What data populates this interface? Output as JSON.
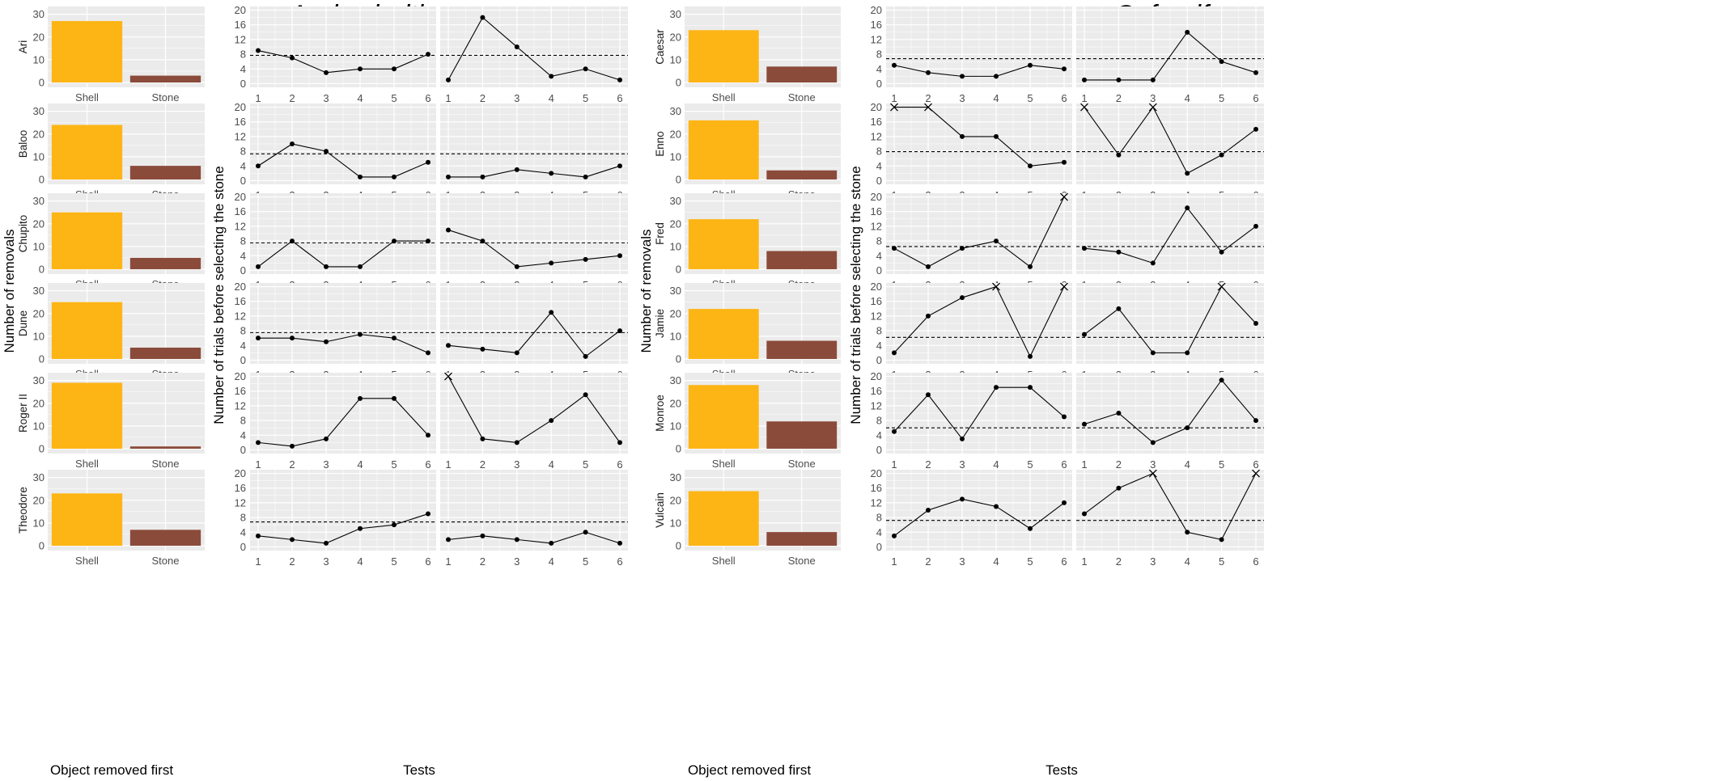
{
  "colors": {
    "shell": "#FDB515",
    "stone": "#8B4B3A",
    "panel_bg": "#EBEBEB",
    "grid_major": "#FFFFFF",
    "line": "#000000"
  },
  "chart_data": [
    {
      "group": "left",
      "species_title": "A. dewindti",
      "bar_panel": {
        "type": "bar",
        "categories": [
          "Shell",
          "Stone"
        ],
        "xlabel": "Object removed first",
        "ylabel": "Number of removals",
        "yticks": [
          "0",
          "10",
          "20",
          "30"
        ],
        "ylim": [
          0,
          32
        ],
        "facets": [
          {
            "name": "Ari",
            "values": [
              27,
              3
            ]
          },
          {
            "name": "Baloo",
            "values": [
              24,
              6
            ]
          },
          {
            "name": "Chupito",
            "values": [
              25,
              5
            ]
          },
          {
            "name": "Dune",
            "values": [
              25,
              5
            ]
          },
          {
            "name": "Roger II",
            "values": [
              29,
              1
            ]
          },
          {
            "name": "Theodore",
            "values": [
              23,
              7
            ]
          }
        ]
      },
      "line_panel": {
        "type": "line",
        "x": [
          1,
          2,
          3,
          4,
          5,
          6
        ],
        "xticks": [
          "1",
          "2",
          "3",
          "4",
          "5",
          "6"
        ],
        "xlabel": "Tests",
        "ylabel": "Number of trials before selecting the stone",
        "yticks": [
          "0",
          "4",
          "8",
          "12",
          "16",
          "20"
        ],
        "ylim": [
          -1,
          21
        ],
        "marker_cross_value": 20,
        "facets": [
          {
            "name": "Ari",
            "reference": 7.7,
            "series": [
              [
                9,
                7,
                3,
                4,
                4,
                8
              ],
              [
                1,
                18,
                10,
                2,
                4,
                1
              ]
            ]
          },
          {
            "name": "Baloo",
            "reference": 7.3,
            "series": [
              [
                4,
                10,
                8,
                1,
                1,
                5
              ],
              [
                1,
                1,
                3,
                2,
                1,
                4
              ]
            ]
          },
          {
            "name": "Chupito",
            "reference": 7.5,
            "series": [
              [
                1,
                8,
                1,
                1,
                8,
                8
              ],
              [
                11,
                8,
                1,
                2,
                3,
                4
              ]
            ]
          },
          {
            "name": "Dune",
            "reference": 7.5,
            "series": [
              [
                6,
                6,
                5,
                7,
                6,
                2
              ],
              [
                4,
                3,
                2,
                13,
                1,
                8
              ]
            ]
          },
          {
            "name": "Roger II",
            "reference": null,
            "series": [
              [
                2,
                1,
                3,
                14,
                14,
                4
              ],
              [
                20,
                3,
                2,
                8,
                15,
                2
              ]
            ]
          },
          {
            "name": "Theodore",
            "reference": 6.8,
            "series": [
              [
                3,
                2,
                1,
                5,
                6,
                9
              ],
              [
                2,
                3,
                2,
                1,
                4,
                1
              ]
            ]
          }
        ]
      }
    },
    {
      "group": "right",
      "species_title": "C. furcifer",
      "bar_panel": {
        "type": "bar",
        "categories": [
          "Shell",
          "Stone"
        ],
        "xlabel": "Object removed first",
        "ylabel": "Number of removals",
        "yticks": [
          "0",
          "10",
          "20",
          "30"
        ],
        "ylim": [
          0,
          32
        ],
        "facets": [
          {
            "name": "Caesar",
            "values": [
              23,
              7
            ]
          },
          {
            "name": "Enno",
            "values": [
              26,
              4
            ]
          },
          {
            "name": "Fred",
            "values": [
              22,
              8
            ]
          },
          {
            "name": "Jamie",
            "values": [
              22,
              8
            ]
          },
          {
            "name": "Monroe",
            "values": [
              28,
              12
            ]
          },
          {
            "name": "Vulcain",
            "values": [
              24,
              6
            ]
          }
        ]
      },
      "line_panel": {
        "type": "line",
        "x": [
          1,
          2,
          3,
          4,
          5,
          6
        ],
        "xticks": [
          "1",
          "2",
          "3",
          "4",
          "5",
          "6"
        ],
        "xlabel": "Tests",
        "ylabel": "Number of trials before selecting the stone",
        "yticks": [
          "0",
          "4",
          "8",
          "12",
          "16",
          "20"
        ],
        "ylim": [
          -1,
          21
        ],
        "marker_cross_value": 20,
        "facets": [
          {
            "name": "Caesar",
            "reference": 6.8,
            "series": [
              [
                5,
                3,
                2,
                2,
                5,
                4
              ],
              [
                1,
                1,
                1,
                14,
                6,
                3
              ]
            ]
          },
          {
            "name": "Enno",
            "reference": 7.9,
            "series": [
              [
                20,
                20,
                12,
                12,
                4,
                5
              ],
              [
                20,
                7,
                20,
                2,
                7,
                14
              ]
            ]
          },
          {
            "name": "Fred",
            "reference": 6.5,
            "series": [
              [
                6,
                1,
                6,
                8,
                1,
                20
              ],
              [
                6,
                5,
                2,
                17,
                5,
                12
              ]
            ]
          },
          {
            "name": "Jamie",
            "reference": 6.2,
            "series": [
              [
                2,
                12,
                17,
                20,
                1,
                20
              ],
              [
                7,
                14,
                2,
                2,
                20,
                10
              ]
            ]
          },
          {
            "name": "Monroe",
            "reference": 6.0,
            "series": [
              [
                5,
                15,
                3,
                17,
                17,
                9
              ],
              [
                7,
                10,
                2,
                6,
                19,
                8
              ]
            ]
          },
          {
            "name": "Vulcain",
            "reference": 7.2,
            "series": [
              [
                3,
                10,
                13,
                11,
                5,
                12
              ],
              [
                9,
                16,
                20,
                4,
                2,
                20
              ]
            ]
          }
        ]
      }
    }
  ]
}
